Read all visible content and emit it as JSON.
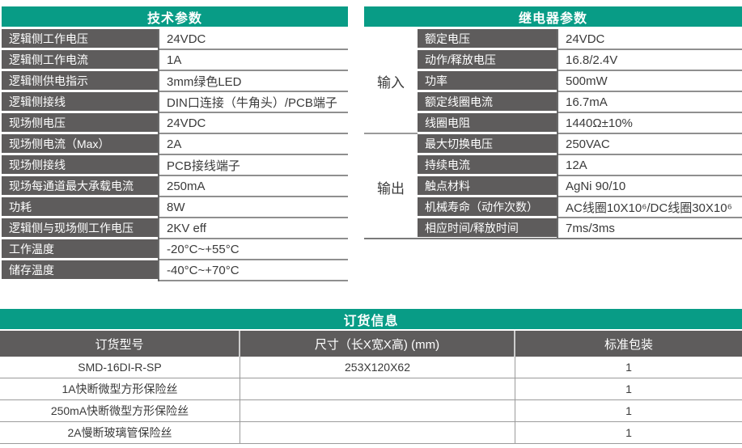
{
  "colors": {
    "header_green": "#089C86",
    "label_cell_gray": "#5E5C5C",
    "value_text": "#3A3A3A",
    "divider_gray": "#8F8F8F"
  },
  "tech_table": {
    "title": "技术参数",
    "rows": [
      {
        "label": "逻辑侧工作电压",
        "value": "24VDC"
      },
      {
        "label": "逻辑侧工作电流",
        "value": "1A"
      },
      {
        "label": "逻辑侧供电指示",
        "value": "3mm绿色LED"
      },
      {
        "label": "逻辑侧接线",
        "value": "DIN口连接（牛角头）/PCB端子"
      },
      {
        "label": "现场侧电压",
        "value": "24VDC"
      },
      {
        "label": "现场侧电流（Max）",
        "value": "2A"
      },
      {
        "label": "现场侧接线",
        "value": "PCB接线端子"
      },
      {
        "label": "现场每通道最大承载电流",
        "value": "250mA"
      },
      {
        "label": "功耗",
        "value": "8W"
      },
      {
        "label": "逻辑侧与现场侧工作电压",
        "value": "2KV eff"
      },
      {
        "label": "工作温度",
        "value": "-20°C~+55°C"
      },
      {
        "label": "储存温度",
        "value": "-40°C~+70°C"
      }
    ]
  },
  "relay_table": {
    "title": "继电器参数",
    "groups": [
      {
        "name": "输入",
        "rows": [
          {
            "label": "额定电压",
            "value": "24VDC"
          },
          {
            "label": "动作/释放电压",
            "value": "16.8/2.4V"
          },
          {
            "label": "功率",
            "value": "500mW"
          },
          {
            "label": "额定线圈电流",
            "value": "16.7mA"
          },
          {
            "label": "线圈电阻",
            "value": "1440Ω±10%"
          }
        ]
      },
      {
        "name": "输出",
        "rows": [
          {
            "label": "最大切换电压",
            "value": "250VAC"
          },
          {
            "label": "持续电流",
            "value": "12A"
          },
          {
            "label": "触点材料",
            "value": "AgNi 90/10"
          },
          {
            "label": "机械寿命（动作次数）",
            "value": "AC线圈10X10⁶/DC线圈30X10⁶"
          },
          {
            "label": "相应时间/释放时间",
            "value": "7ms/3ms"
          }
        ]
      }
    ]
  },
  "order_table": {
    "title": "订货信息",
    "columns": [
      "订货型号",
      "尺寸（长X宽X高) (mm)",
      "标准包装"
    ],
    "rows": [
      {
        "model": "SMD-16DI-R-SP",
        "size": "253X120X62",
        "pack": "1"
      },
      {
        "model": "1A快断微型方形保险丝",
        "size": "",
        "pack": "1"
      },
      {
        "model": "250mA快断微型方形保险丝",
        "size": "",
        "pack": "1"
      },
      {
        "model": "2A慢断玻璃管保险丝",
        "size": "",
        "pack": "1"
      }
    ]
  }
}
